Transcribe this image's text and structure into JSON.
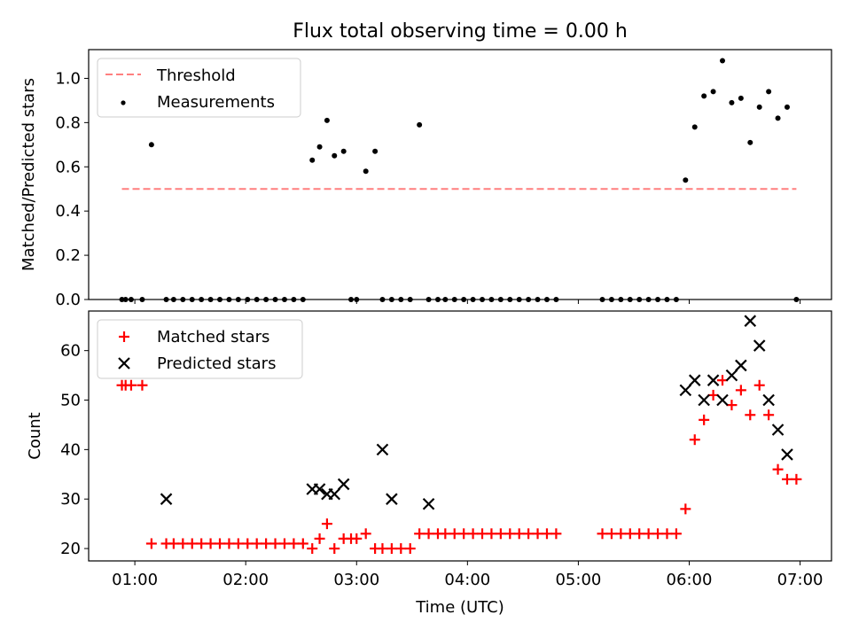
{
  "chart_data": [
    {
      "type": "scatter",
      "title": "Flux total observing time = 0.00 h",
      "xlabel": "",
      "ylabel": "Matched/Predicted stars",
      "xlim": [
        "00:35",
        "07:17"
      ],
      "ylim": [
        0,
        1.13
      ],
      "yticks": [
        "0.0",
        "0.2",
        "0.4",
        "0.6",
        "0.8",
        "1.0"
      ],
      "legend_position": "top-left",
      "legend": [
        {
          "label": "Threshold",
          "color": "#ff7f7f",
          "marker": "dashed-line"
        },
        {
          "label": "Measurements",
          "color": "#000000",
          "marker": "dot"
        }
      ],
      "threshold": {
        "value": 0.5,
        "x_start": "00:53",
        "x_end": "06:58"
      },
      "series": [
        {
          "name": "Measurements",
          "x": [
            "00:53",
            "00:55",
            "00:58",
            "01:04",
            "01:09",
            "01:17",
            "01:21",
            "01:26",
            "01:31",
            "01:36",
            "01:41",
            "01:46",
            "01:51",
            "01:56",
            "02:01",
            "02:06",
            "02:11",
            "02:16",
            "02:21",
            "02:26",
            "02:31",
            "02:36",
            "02:40",
            "02:44",
            "02:48",
            "02:53",
            "02:57",
            "03:00",
            "03:05",
            "03:10",
            "03:14",
            "03:19",
            "03:24",
            "03:29",
            "03:34",
            "03:39",
            "03:44",
            "03:48",
            "03:53",
            "03:58",
            "04:03",
            "04:08",
            "04:13",
            "04:18",
            "04:23",
            "04:28",
            "04:33",
            "04:38",
            "04:43",
            "04:48",
            "05:13",
            "05:18",
            "05:23",
            "05:28",
            "05:33",
            "05:38",
            "05:43",
            "05:48",
            "05:53",
            "05:58",
            "06:03",
            "06:08",
            "06:13",
            "06:18",
            "06:23",
            "06:28",
            "06:33",
            "06:38",
            "06:43",
            "06:48",
            "06:53",
            "06:58"
          ],
          "y": [
            0,
            0,
            0,
            0,
            0.7,
            0,
            0,
            0,
            0,
            0,
            0,
            0,
            0,
            0,
            0,
            0,
            0,
            0,
            0,
            0,
            0,
            0.63,
            0.69,
            0.81,
            0.65,
            0.67,
            0,
            0,
            0.58,
            0.67,
            0,
            0,
            0,
            0,
            0.79,
            0,
            0,
            0,
            0,
            0,
            0,
            0,
            0,
            0,
            0,
            0,
            0,
            0,
            0,
            0,
            0,
            0,
            0,
            0,
            0,
            0,
            0,
            0,
            0,
            0.54,
            0.78,
            0.92,
            0.94,
            1.08,
            0.89,
            0.91,
            0.71,
            0.87,
            0.94,
            0.82,
            0.87,
            0
          ]
        }
      ]
    },
    {
      "type": "scatter",
      "title": "",
      "xlabel": "Time (UTC)",
      "ylabel": "Count",
      "xlim": [
        "00:35",
        "07:17"
      ],
      "ylim": [
        17.5,
        68
      ],
      "xticks": [
        "01:00",
        "02:00",
        "03:00",
        "04:00",
        "05:00",
        "06:00",
        "07:00"
      ],
      "yticks": [
        "20",
        "30",
        "40",
        "50",
        "60"
      ],
      "legend_position": "top-left",
      "legend": [
        {
          "label": "Matched stars",
          "color": "#ff0000",
          "marker": "plus"
        },
        {
          "label": "Predicted stars",
          "color": "#000000",
          "marker": "x"
        }
      ],
      "series": [
        {
          "name": "Matched stars",
          "marker": "plus",
          "color": "#ff0000",
          "x": [
            "00:53",
            "00:55",
            "00:58",
            "01:04",
            "01:09",
            "01:17",
            "01:21",
            "01:26",
            "01:31",
            "01:36",
            "01:41",
            "01:46",
            "01:51",
            "01:56",
            "02:01",
            "02:06",
            "02:11",
            "02:16",
            "02:21",
            "02:26",
            "02:31",
            "02:36",
            "02:40",
            "02:44",
            "02:48",
            "02:53",
            "02:57",
            "03:00",
            "03:05",
            "03:10",
            "03:14",
            "03:19",
            "03:24",
            "03:29",
            "03:34",
            "03:39",
            "03:44",
            "03:48",
            "03:53",
            "03:58",
            "04:03",
            "04:08",
            "04:13",
            "04:18",
            "04:23",
            "04:28",
            "04:33",
            "04:38",
            "04:43",
            "04:48",
            "05:13",
            "05:18",
            "05:23",
            "05:28",
            "05:33",
            "05:38",
            "05:43",
            "05:48",
            "05:53",
            "05:58",
            "06:03",
            "06:08",
            "06:13",
            "06:18",
            "06:23",
            "06:28",
            "06:33",
            "06:38",
            "06:43",
            "06:48",
            "06:53",
            "06:58"
          ],
          "y": [
            53,
            53,
            53,
            53,
            21,
            21,
            21,
            21,
            21,
            21,
            21,
            21,
            21,
            21,
            21,
            21,
            21,
            21,
            21,
            21,
            21,
            20,
            22,
            25,
            20,
            22,
            22,
            22,
            23,
            20,
            20,
            20,
            20,
            20,
            23,
            23,
            23,
            23,
            23,
            23,
            23,
            23,
            23,
            23,
            23,
            23,
            23,
            23,
            23,
            23,
            23,
            23,
            23,
            23,
            23,
            23,
            23,
            23,
            23,
            28,
            42,
            46,
            51,
            54,
            49,
            52,
            47,
            53,
            47,
            36,
            34,
            34
          ]
        },
        {
          "name": "Predicted stars",
          "marker": "x",
          "color": "#000000",
          "x": [
            "01:17",
            "02:36",
            "02:40",
            "02:44",
            "02:48",
            "02:53",
            "03:14",
            "03:19",
            "03:39",
            "05:58",
            "06:03",
            "06:08",
            "06:13",
            "06:18",
            "06:23",
            "06:28",
            "06:33",
            "06:38",
            "06:43",
            "06:48",
            "06:53"
          ],
          "y": [
            30,
            32,
            32,
            31,
            31,
            33,
            40,
            30,
            29,
            52,
            54,
            50,
            54,
            50,
            55,
            57,
            66,
            61,
            50,
            44,
            39
          ]
        }
      ]
    }
  ]
}
